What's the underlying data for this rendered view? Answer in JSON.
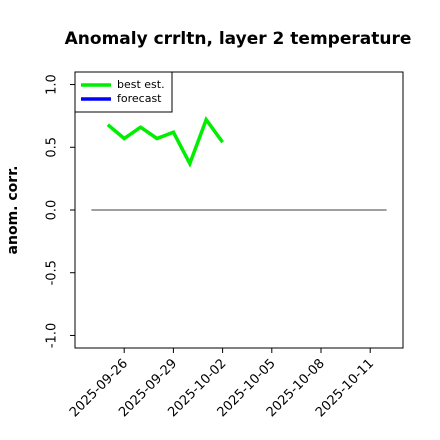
{
  "chart_data": {
    "type": "line",
    "title": "Anomaly crrltn, layer 2 temperature",
    "ylabel": "anom. corr.",
    "series": [
      {
        "name": "best est.",
        "color": "#00ee00",
        "x": [
          "2025-09-25",
          "2025-09-26",
          "2025-09-27",
          "2025-09-28",
          "2025-09-29",
          "2025-09-30",
          "2025-10-01",
          "2025-10-02"
        ],
        "values": [
          0.68,
          0.57,
          0.66,
          0.57,
          0.62,
          0.37,
          0.72,
          0.54
        ]
      },
      {
        "name": "forecast",
        "color": "#0000ff",
        "x": [],
        "values": []
      }
    ],
    "reference_line": {
      "y": 0,
      "x": [
        "2025-09-24",
        "2025-10-12"
      ],
      "color": "#666666"
    },
    "xlim": [
      "2025-09-23",
      "2025-10-13"
    ],
    "xticks": [
      "2025-09-26",
      "2025-09-29",
      "2025-10-02",
      "2025-10-05",
      "2025-10-08",
      "2025-10-11"
    ],
    "xtick_colors": [
      "#000000",
      "#000000",
      "#228b22",
      "#000000",
      "#000000",
      "#000000"
    ],
    "ylim": [
      -1.1,
      1.1
    ],
    "yticks": [
      -1.0,
      -0.5,
      0.0,
      0.5,
      1.0
    ],
    "legend": "upper left"
  }
}
